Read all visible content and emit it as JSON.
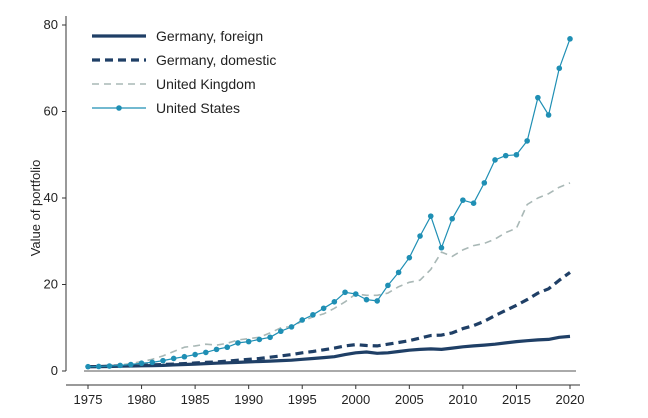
{
  "chart_data": {
    "type": "line",
    "title": "",
    "xlabel": "",
    "ylabel": "Value of portfolio",
    "xlim": [
      1975,
      2020
    ],
    "ylim": [
      0,
      80
    ],
    "xticks": [
      1975,
      1980,
      1985,
      1990,
      1995,
      2000,
      2005,
      2010,
      2015,
      2020
    ],
    "yticks": [
      0,
      20,
      40,
      60,
      80
    ],
    "grid": false,
    "legend_position": "top-left",
    "x": [
      1975,
      1976,
      1977,
      1978,
      1979,
      1980,
      1981,
      1982,
      1983,
      1984,
      1985,
      1986,
      1987,
      1988,
      1989,
      1990,
      1991,
      1992,
      1993,
      1994,
      1995,
      1996,
      1997,
      1998,
      1999,
      2000,
      2001,
      2002,
      2003,
      2004,
      2005,
      2006,
      2007,
      2008,
      2009,
      2010,
      2011,
      2012,
      2013,
      2014,
      2015,
      2016,
      2017,
      2018,
      2019,
      2020
    ],
    "series": [
      {
        "name": "Germany, foreign",
        "style": "solid-thick",
        "color": "#1f3f66",
        "values": [
          1.0,
          1.0,
          1.05,
          1.1,
          1.15,
          1.2,
          1.25,
          1.3,
          1.4,
          1.5,
          1.6,
          1.7,
          1.8,
          1.9,
          2.0,
          2.1,
          2.2,
          2.3,
          2.4,
          2.5,
          2.7,
          2.9,
          3.1,
          3.3,
          3.8,
          4.2,
          4.4,
          4.1,
          4.2,
          4.5,
          4.8,
          5.0,
          5.1,
          5.0,
          5.3,
          5.6,
          5.8,
          6.0,
          6.2,
          6.5,
          6.8,
          7.0,
          7.2,
          7.3,
          7.8,
          8.0
        ]
      },
      {
        "name": "Germany, domestic",
        "style": "dashed-thick",
        "color": "#1f3f66",
        "values": [
          1.0,
          1.05,
          1.1,
          1.15,
          1.2,
          1.3,
          1.4,
          1.5,
          1.6,
          1.7,
          1.85,
          2.0,
          2.1,
          2.3,
          2.5,
          2.7,
          2.9,
          3.2,
          3.5,
          3.8,
          4.2,
          4.5,
          4.9,
          5.3,
          5.8,
          6.1,
          5.9,
          5.8,
          6.2,
          6.6,
          7.0,
          7.6,
          8.2,
          8.3,
          8.8,
          9.8,
          10.5,
          11.5,
          12.8,
          14.0,
          15.2,
          16.5,
          18.0,
          19.0,
          21.0,
          22.8
        ]
      },
      {
        "name": "United Kingdom",
        "style": "dashed-light",
        "color": "#a9b8b6",
        "values": [
          1.0,
          1.1,
          1.2,
          1.4,
          1.7,
          2.2,
          2.7,
          3.5,
          4.5,
          5.5,
          5.8,
          6.2,
          6.0,
          6.4,
          7.2,
          7.5,
          7.8,
          8.8,
          10.0,
          10.3,
          11.5,
          12.5,
          13.2,
          14.5,
          16.0,
          17.8,
          17.5,
          17.5,
          18.0,
          19.5,
          20.5,
          21.0,
          23.5,
          27.5,
          26.5,
          28.0,
          29.0,
          29.5,
          30.5,
          32.0,
          33.0,
          38.5,
          40.0,
          41.0,
          42.5,
          43.5
        ]
      },
      {
        "name": "United States",
        "style": "solid-markers",
        "color": "#1f8fb4",
        "values": [
          1.0,
          1.05,
          1.15,
          1.3,
          1.5,
          1.8,
          2.0,
          2.4,
          2.9,
          3.3,
          3.8,
          4.3,
          5.0,
          5.5,
          6.5,
          6.8,
          7.3,
          7.8,
          9.2,
          10.2,
          11.8,
          13.0,
          14.5,
          16.0,
          18.2,
          17.8,
          16.5,
          16.2,
          19.8,
          22.8,
          26.2,
          31.2,
          35.8,
          28.5,
          35.2,
          39.5,
          38.8,
          43.5,
          48.8,
          49.8,
          50.0,
          53.2,
          63.2,
          59.2,
          70.0,
          76.8
        ]
      }
    ]
  }
}
